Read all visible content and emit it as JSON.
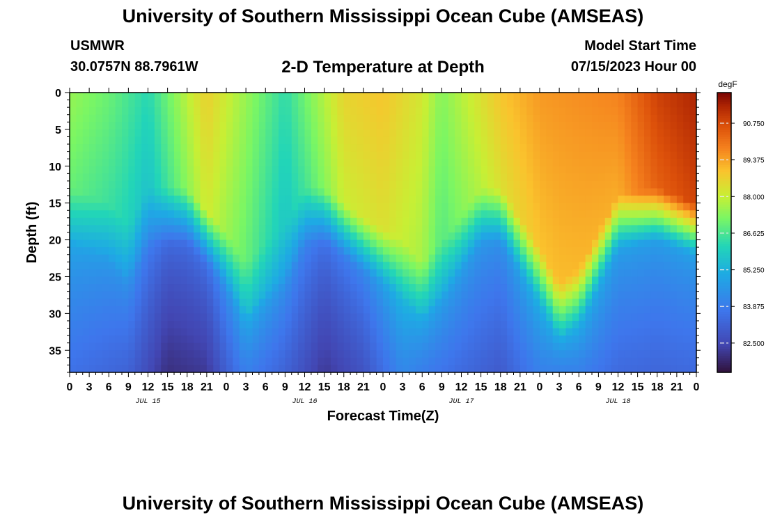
{
  "header": {
    "title": "University of Southern Mississippi Ocean Cube (AMSEAS)",
    "station": "USMWR",
    "coords": "30.0757N  88.7961W",
    "plot_title": "2-D Temperature at Depth",
    "model_start_label": "Model Start Time",
    "model_start_value": "07/15/2023 Hour 00"
  },
  "footer": {
    "title": "University of Southern Mississippi Ocean Cube (AMSEAS)"
  },
  "chart_data": {
    "type": "heatmap",
    "title": "2-D Temperature at Depth",
    "xlabel": "Forecast Time(Z)",
    "ylabel": "Depth (ft)",
    "x_range_hours": [
      0,
      96
    ],
    "x_tick_labels": [
      "0",
      "3",
      "6",
      "9",
      "12",
      "15",
      "18",
      "21",
      "0",
      "3",
      "6",
      "9",
      "12",
      "15",
      "18",
      "21",
      "0",
      "3",
      "6",
      "9",
      "12",
      "15",
      "18",
      "21",
      "0",
      "3",
      "6",
      "9",
      "12",
      "15",
      "18",
      "21",
      "0"
    ],
    "date_labels": [
      {
        "label": "JUL 15",
        "hour": 12
      },
      {
        "label": "JUL 16",
        "hour": 36
      },
      {
        "label": "JUL 17",
        "hour": 60
      },
      {
        "label": "JUL 18",
        "hour": 84
      }
    ],
    "y_range_ft": [
      0,
      38
    ],
    "y_ticks": [
      0,
      5,
      10,
      15,
      20,
      25,
      30,
      35
    ],
    "colorbar": {
      "unit": "degF",
      "range": [
        81.4,
        91.9
      ],
      "tick_values": [
        82.5,
        83.875,
        85.25,
        86.625,
        88.0,
        89.375,
        90.75
      ],
      "tick_labels": [
        "82.500",
        "83.875",
        "85.250",
        "86.625",
        "88.000",
        "89.375",
        "90.750"
      ]
    },
    "surface_temperature_degF": [
      {
        "hour": 0,
        "value": 87.5
      },
      {
        "hour": 6,
        "value": 87.0
      },
      {
        "hour": 12,
        "value": 86.2
      },
      {
        "hour": 18,
        "value": 87.9
      },
      {
        "hour": 21,
        "value": 88.7
      },
      {
        "hour": 27,
        "value": 87.5
      },
      {
        "hour": 33,
        "value": 86.3
      },
      {
        "hour": 42,
        "value": 88.6
      },
      {
        "hour": 48,
        "value": 88.9
      },
      {
        "hour": 54,
        "value": 88.2
      },
      {
        "hour": 57,
        "value": 87.3
      },
      {
        "hour": 66,
        "value": 88.9
      },
      {
        "hour": 72,
        "value": 89.5
      },
      {
        "hour": 84,
        "value": 89.8
      },
      {
        "hour": 90,
        "value": 90.9
      },
      {
        "hour": 96,
        "value": 91.4
      }
    ],
    "mixed_layer_depth_ft": [
      {
        "hour": 0,
        "value": 16
      },
      {
        "hour": 6,
        "value": 18
      },
      {
        "hour": 9,
        "value": 21
      },
      {
        "hour": 12,
        "value": 16
      },
      {
        "hour": 18,
        "value": 16
      },
      {
        "hour": 24,
        "value": 22
      },
      {
        "hour": 27,
        "value": 26
      },
      {
        "hour": 33,
        "value": 21
      },
      {
        "hour": 36,
        "value": 16
      },
      {
        "hour": 39,
        "value": 16
      },
      {
        "hour": 45,
        "value": 20
      },
      {
        "hour": 51,
        "value": 23
      },
      {
        "hour": 54,
        "value": 26
      },
      {
        "hour": 58,
        "value": 22
      },
      {
        "hour": 63,
        "value": 16
      },
      {
        "hour": 66,
        "value": 16
      },
      {
        "hour": 72,
        "value": 24
      },
      {
        "hour": 75,
        "value": 29
      },
      {
        "hour": 78,
        "value": 27
      },
      {
        "hour": 84,
        "value": 17
      },
      {
        "hour": 90,
        "value": 16
      },
      {
        "hour": 96,
        "value": 18
      }
    ],
    "bottom_temperature_degF": [
      {
        "hour": 0,
        "value": 83.6
      },
      {
        "hour": 9,
        "value": 83.2
      },
      {
        "hour": 15,
        "value": 82.0
      },
      {
        "hour": 21,
        "value": 82.2
      },
      {
        "hour": 27,
        "value": 84.0
      },
      {
        "hour": 33,
        "value": 83.2
      },
      {
        "hour": 39,
        "value": 82.2
      },
      {
        "hour": 45,
        "value": 82.8
      },
      {
        "hour": 51,
        "value": 84.2
      },
      {
        "hour": 60,
        "value": 83.4
      },
      {
        "hour": 66,
        "value": 83.0
      },
      {
        "hour": 72,
        "value": 84.0
      },
      {
        "hour": 78,
        "value": 84.0
      },
      {
        "hour": 84,
        "value": 83.4
      },
      {
        "hour": 90,
        "value": 83.3
      },
      {
        "hour": 96,
        "value": 83.4
      }
    ]
  }
}
